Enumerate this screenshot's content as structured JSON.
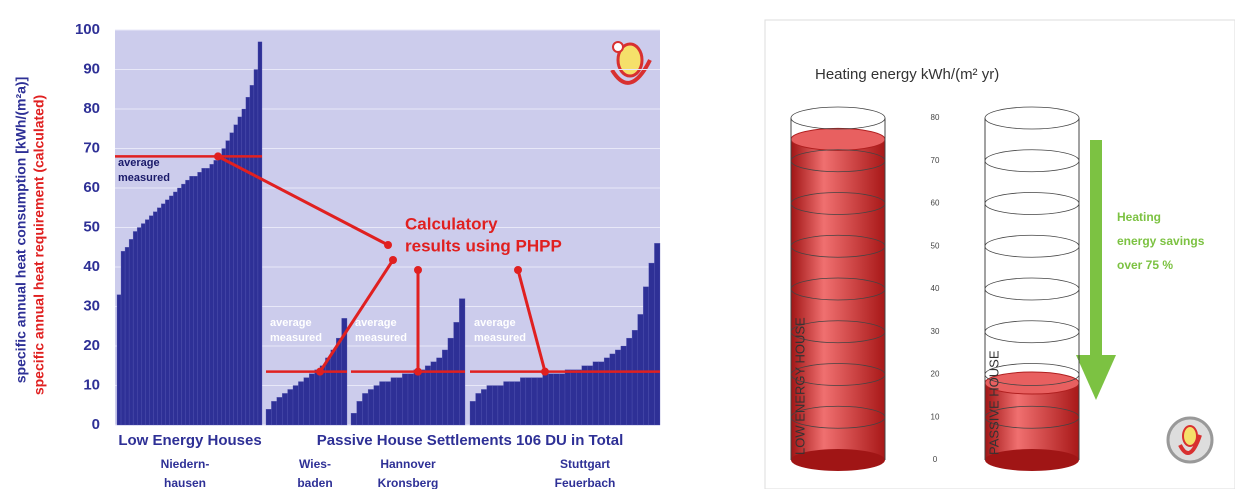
{
  "chart_data": [
    {
      "type": "bar",
      "y_label": "specific annual heat consumption   [kWh/(m²a)]",
      "y_label_2": "specific annual heat requirement (calculated)",
      "ylim": [
        0,
        100
      ],
      "yticks": [
        0,
        10,
        20,
        30,
        40,
        50,
        60,
        70,
        80,
        90,
        100
      ],
      "grid": true,
      "color": "#2e3096",
      "calc_color": "#e02020",
      "sections": [
        "Low Energy Houses",
        "Passive House Settlements 106 DU in Total"
      ],
      "callout": [
        "Calculatory",
        "results using PHPP"
      ],
      "groups": [
        {
          "label": [
            "Niedern-",
            "hausen"
          ],
          "annotation": [
            "average",
            "measured"
          ],
          "calculated": 68,
          "values": [
            33,
            44,
            45,
            47,
            49,
            50,
            51,
            52,
            53,
            54,
            55,
            56,
            57,
            58,
            59,
            60,
            61,
            62,
            63,
            63,
            64,
            65,
            65,
            66,
            67,
            68,
            70,
            72,
            74,
            76,
            78,
            80,
            83,
            86,
            90,
            97
          ]
        },
        {
          "label": [
            "Wies-",
            "baden"
          ],
          "annotation": [
            "average",
            "measured"
          ],
          "calculated": 13.5,
          "values": [
            4,
            6,
            7,
            8,
            9,
            10,
            11,
            12,
            13,
            14,
            15,
            17,
            19,
            22,
            27
          ]
        },
        {
          "label": [
            "Hannover",
            "Kronsberg"
          ],
          "annotation": [
            "average",
            "measured"
          ],
          "calculated": 13.5,
          "values": [
            3,
            6,
            8,
            9,
            10,
            11,
            11,
            12,
            12,
            13,
            13,
            14,
            14,
            15,
            16,
            17,
            19,
            22,
            26,
            32
          ]
        },
        {
          "label": [
            "Stuttgart",
            "Feuerbach"
          ],
          "annotation": [
            "average",
            "measured"
          ],
          "calculated": 13.5,
          "values": [
            6,
            8,
            9,
            10,
            10,
            10,
            11,
            11,
            11,
            12,
            12,
            12,
            12,
            13,
            13,
            13,
            13,
            14,
            14,
            14,
            15,
            15,
            16,
            16,
            17,
            18,
            19,
            20,
            22,
            24,
            28,
            35,
            41,
            46
          ]
        }
      ]
    },
    {
      "type": "cylinder",
      "title": "Heating energy kWh/(m² yr)",
      "categories": [
        "LOW ENERGY HOUSE",
        "PASSIVE HOUSE"
      ],
      "values": [
        75,
        18
      ],
      "color": "#d42a2a",
      "ylim": [
        0,
        80
      ],
      "yticks": [
        0,
        10,
        20,
        30,
        40,
        50,
        60,
        70,
        80
      ],
      "annotation": [
        "Heating",
        "energy savings",
        "over 75 %"
      ]
    }
  ]
}
